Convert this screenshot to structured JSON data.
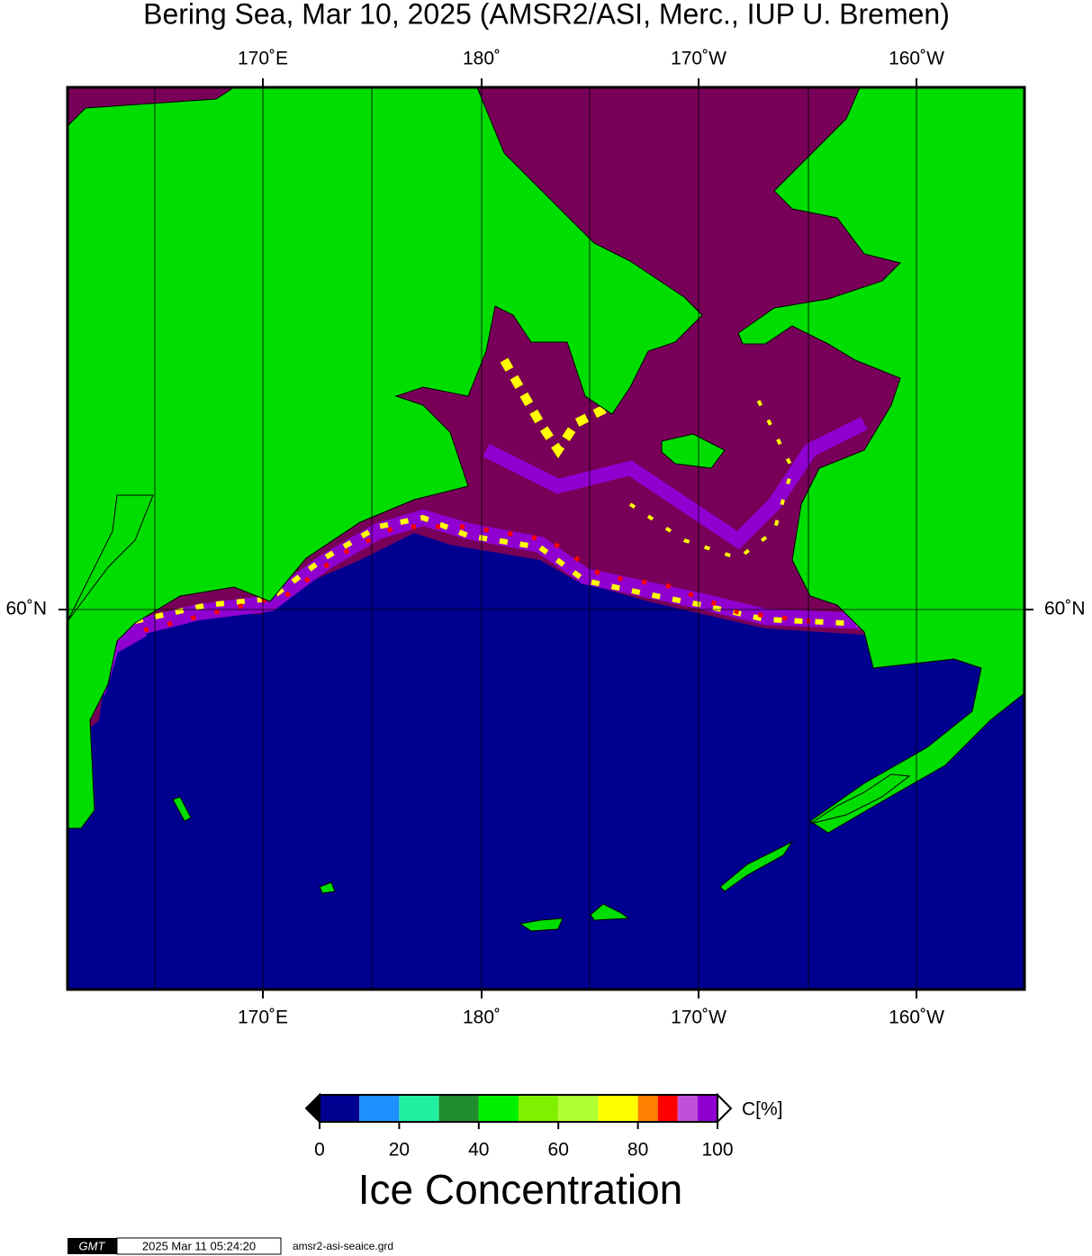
{
  "header": {
    "title": "Bering Sea, Mar 10, 2025 (AMSR2/ASI, Merc., IUP U. Bremen)"
  },
  "map": {
    "lon_labels": [
      "170˚E",
      "180˚",
      "170˚W",
      "160˚W"
    ],
    "lat_labels": [
      "60˚N"
    ]
  },
  "colorbar": {
    "label": "Ice Concentration",
    "unit": "C[%]",
    "lim": [
      0,
      100
    ],
    "ticks": [
      0,
      20,
      40,
      60,
      80,
      100
    ],
    "bounds": [
      0,
      10,
      20,
      30,
      40,
      50,
      60,
      70,
      80,
      85,
      90,
      95,
      100
    ],
    "colors": [
      "#000090",
      "#1e90ff",
      "#20f0a0",
      "#208c2c",
      "#00f000",
      "#80f000",
      "#b0ff30",
      "#ffff00",
      "#ff8000",
      "#ff0000",
      "#c050d8",
      "#9000d0"
    ]
  },
  "footer": {
    "logo": "GMT",
    "timestamp": "2025 Mar 11 05:24:20",
    "file": "amsr2-asi-seaice.grd"
  }
}
